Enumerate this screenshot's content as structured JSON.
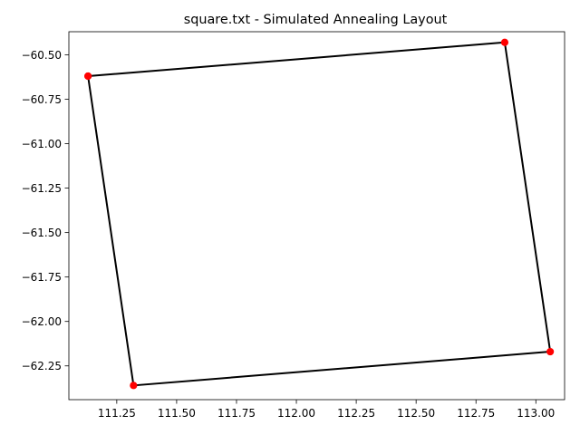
{
  "chart_data": {
    "type": "line",
    "title": "square.txt - Simulated Annealing Layout",
    "xlabel": "",
    "ylabel": "",
    "xlim": [
      111.05,
      113.12
    ],
    "ylim": [
      -62.44,
      -60.37
    ],
    "xticks": [
      111.25,
      111.5,
      111.75,
      112.0,
      112.25,
      112.5,
      112.75,
      113.0
    ],
    "xtick_labels": [
      "111.25",
      "111.50",
      "111.75",
      "112.00",
      "112.25",
      "112.50",
      "112.75",
      "113.00"
    ],
    "yticks": [
      -60.5,
      -60.75,
      -61.0,
      -61.25,
      -61.5,
      -61.75,
      -62.0,
      -62.25
    ],
    "ytick_labels": [
      "−60.50",
      "−60.75",
      "−61.00",
      "−61.25",
      "−61.50",
      "−61.75",
      "−62.00",
      "−62.25"
    ],
    "grid": false,
    "series": [
      {
        "line_color": "#000000",
        "marker_color": "#ff0000",
        "points": [
          {
            "x": 111.13,
            "y": -60.62
          },
          {
            "x": 112.87,
            "y": -60.43
          },
          {
            "x": 113.06,
            "y": -62.17
          },
          {
            "x": 111.32,
            "y": -62.36
          },
          {
            "x": 111.13,
            "y": -60.62
          }
        ]
      }
    ]
  }
}
